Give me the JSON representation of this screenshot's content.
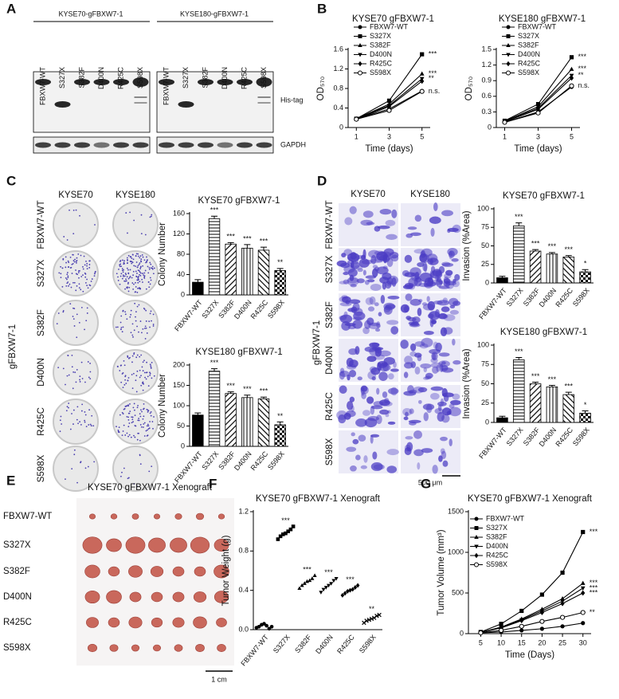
{
  "panel_labels": [
    "A",
    "B",
    "C",
    "D",
    "E",
    "F",
    "G"
  ],
  "panel_a": {
    "blots": [
      "KYSE70-gFBXW7-1",
      "KYSE180-gFBXW7-1"
    ],
    "lanes": [
      "FBXW7-WT",
      "S327X",
      "S382F",
      "D400N",
      "R425C",
      "S598X"
    ],
    "bands": [
      "His-tag",
      "GAPDH"
    ]
  },
  "panel_c": {
    "columns": [
      "KYSE70",
      "KYSE180"
    ],
    "rows": [
      "FBXW7-WT",
      "S327X",
      "S382F",
      "D400N",
      "R425C",
      "S598X"
    ],
    "group": "gFBXW7-1"
  },
  "panel_d": {
    "columns": [
      "KYSE70",
      "KYSE180"
    ],
    "rows": [
      "FBXW7-WT",
      "S327X",
      "S382F",
      "D400N",
      "R425C",
      "S598X"
    ],
    "group": "gFBXW7-1",
    "scale_bar": "500 μm"
  },
  "panel_e": {
    "title": "KYSE70 gFBXW7-1 Xenograft",
    "rows": [
      "FBXW7-WT",
      "S327X",
      "S382F",
      "D400N",
      "R425C",
      "S598X"
    ],
    "scale_bar": "1 cm"
  },
  "chart_data": [
    {
      "type": "line",
      "title": "KYSE70 gFBXW7-1",
      "x_label": "Time (days)",
      "y_label": "OD₅₇₀",
      "color": "#000000",
      "x": [
        1,
        3,
        5
      ],
      "xlim": [
        0.5,
        5.5
      ],
      "xticks": [
        1,
        3,
        5
      ],
      "ylim": [
        0,
        1.6
      ],
      "yticks": [
        0,
        0.4,
        0.8,
        1.2,
        1.6
      ],
      "series": [
        {
          "name": "FBXW7-WT",
          "marker": "circle",
          "values": [
            0.18,
            0.38,
            0.75
          ]
        },
        {
          "name": "S327X",
          "marker": "square",
          "values": [
            0.18,
            0.55,
            1.5
          ],
          "significance": "***"
        },
        {
          "name": "S382F",
          "marker": "triangle-up",
          "values": [
            0.18,
            0.48,
            1.1
          ],
          "significance": "***"
        },
        {
          "name": "D400N",
          "marker": "triangle-down",
          "values": [
            0.18,
            0.45,
            1.0
          ],
          "significance": "**"
        },
        {
          "name": "R425C",
          "marker": "diamond",
          "values": [
            0.17,
            0.43,
            0.95
          ]
        },
        {
          "name": "S598X",
          "marker": "circle-open",
          "values": [
            0.17,
            0.35,
            0.74
          ],
          "significance": "n.s."
        }
      ]
    },
    {
      "type": "line",
      "title": "KYSE180 gFBXW7-1",
      "x_label": "Time (days)",
      "y_label": "OD₅₇₀",
      "color": "#000000",
      "x": [
        1,
        3,
        5
      ],
      "xlim": [
        0.5,
        5.5
      ],
      "xticks": [
        1,
        3,
        5
      ],
      "ylim": [
        0,
        1.5
      ],
      "yticks": [
        0,
        0.3,
        0.6,
        0.9,
        1.2,
        1.5
      ],
      "series": [
        {
          "name": "FBXW7-WT",
          "marker": "circle",
          "values": [
            0.1,
            0.3,
            0.78
          ]
        },
        {
          "name": "S327X",
          "marker": "square",
          "values": [
            0.13,
            0.45,
            1.35
          ],
          "significance": "***"
        },
        {
          "name": "S382F",
          "marker": "triangle-up",
          "values": [
            0.12,
            0.4,
            1.12
          ],
          "significance": "***"
        },
        {
          "name": "D400N",
          "marker": "triangle-down",
          "values": [
            0.12,
            0.37,
            1.0
          ],
          "significance": "**"
        },
        {
          "name": "R425C",
          "marker": "diamond",
          "values": [
            0.11,
            0.35,
            0.95
          ]
        },
        {
          "name": "S598X",
          "marker": "circle-open",
          "values": [
            0.1,
            0.28,
            0.8
          ],
          "significance": "n.s."
        }
      ]
    },
    {
      "type": "bar",
      "title": "KYSE70 gFBXW7-1",
      "y_label": "Colony Number",
      "color": "#000000",
      "categories": [
        "FBXW7-WT",
        "S327X",
        "S382F",
        "D400N",
        "R425C",
        "S598X"
      ],
      "values": [
        25,
        150,
        100,
        92,
        88,
        48
      ],
      "errors": [
        5,
        5,
        3,
        7,
        6,
        4
      ],
      "significance": [
        null,
        "***",
        "***",
        "***",
        "***",
        "**"
      ],
      "patterns": [
        "solid",
        "horizontal",
        "diagonal",
        "vertical",
        "diagonal-back",
        "checker"
      ],
      "ylim": [
        0,
        160
      ],
      "yticks": [
        0,
        40,
        80,
        120,
        160
      ]
    },
    {
      "type": "bar",
      "title": "KYSE180 gFBXW7-1",
      "y_label": "Colony Number",
      "color": "#000000",
      "categories": [
        "FBXW7-WT",
        "S327X",
        "S382F",
        "D400N",
        "R425C",
        "S598X"
      ],
      "values": [
        77,
        185,
        130,
        120,
        117,
        53
      ],
      "errors": [
        5,
        6,
        4,
        6,
        4,
        7
      ],
      "significance": [
        null,
        "***",
        "***",
        "***",
        "***",
        "**"
      ],
      "patterns": [
        "solid",
        "horizontal",
        "diagonal",
        "vertical",
        "diagonal-back",
        "checker"
      ],
      "ylim": [
        0,
        200
      ],
      "yticks": [
        0,
        50,
        100,
        150,
        200
      ]
    },
    {
      "type": "bar",
      "title": "KYSE70 gFBXW7-1",
      "y_label": "Invasion (%Area)",
      "color": "#000000",
      "categories": [
        "FBXW7-WT",
        "S327X",
        "S382F",
        "D400N",
        "R425C",
        "S598X"
      ],
      "values": [
        7,
        77,
        43,
        39,
        35,
        15
      ],
      "errors": [
        2,
        4,
        2,
        2,
        2,
        3
      ],
      "significance": [
        null,
        "***",
        "***",
        "***",
        "***",
        "*"
      ],
      "patterns": [
        "solid",
        "horizontal",
        "diagonal",
        "vertical",
        "diagonal-back",
        "checker"
      ],
      "ylim": [
        0,
        100
      ],
      "yticks": [
        0,
        25,
        50,
        75,
        100
      ]
    },
    {
      "type": "bar",
      "title": "KYSE180 gFBXW7-1",
      "y_label": "Invasion (%Area)",
      "color": "#000000",
      "categories": [
        "FBXW7-WT",
        "S327X",
        "S382F",
        "D400N",
        "R425C",
        "S598X"
      ],
      "values": [
        6,
        81,
        50,
        46,
        36,
        12
      ],
      "errors": [
        2,
        3,
        2,
        2,
        3,
        3
      ],
      "significance": [
        null,
        "***",
        "***",
        "***",
        "***",
        "*"
      ],
      "patterns": [
        "solid",
        "horizontal",
        "diagonal",
        "vertical",
        "diagonal-back",
        "checker"
      ],
      "ylim": [
        0,
        100
      ],
      "yticks": [
        0,
        25,
        50,
        75,
        100
      ]
    },
    {
      "type": "strip",
      "title": "KYSE70 gFBXW7-1 Xenograft",
      "y_label": "Tumor Weight (g)",
      "color": "#000000",
      "categories": [
        "FBXW7-WT",
        "S327X",
        "S382F",
        "D400N",
        "R425C",
        "S598X"
      ],
      "markers": [
        "circle",
        "square",
        "triangle-up",
        "triangle-down",
        "diamond",
        "x"
      ],
      "values": [
        [
          0.02,
          0.03,
          0.05,
          0.06,
          0.04,
          0.01,
          0.03
        ],
        [
          0.92,
          0.95,
          0.97,
          0.98,
          1.0,
          1.02,
          1.05
        ],
        [
          0.42,
          0.45,
          0.47,
          0.49,
          0.5,
          0.52,
          0.55
        ],
        [
          0.38,
          0.41,
          0.43,
          0.45,
          0.47,
          0.5,
          0.52
        ],
        [
          0.35,
          0.37,
          0.39,
          0.4,
          0.41,
          0.43,
          0.45
        ],
        [
          0.07,
          0.09,
          0.1,
          0.11,
          0.12,
          0.14,
          0.15
        ]
      ],
      "significance": [
        null,
        "***",
        "***",
        "***",
        "***",
        "**"
      ],
      "ylim": [
        0,
        1.2
      ],
      "yticks": [
        {
          "value": 0,
          "label": "0.0"
        },
        0.4,
        0.8,
        1.2
      ]
    },
    {
      "type": "line",
      "title": "KYSE70 gFBXW7-1 Xenograft",
      "x_label": "Time (Days)",
      "y_label": "Tumor Volume (mm³)",
      "color": "#000000",
      "x": [
        5,
        10,
        15,
        20,
        25,
        30
      ],
      "xlim": [
        2,
        32
      ],
      "xticks": [
        5,
        10,
        15,
        20,
        25,
        30
      ],
      "ylim": [
        0,
        1500
      ],
      "yticks": [
        0,
        500,
        1000,
        1500
      ],
      "series": [
        {
          "name": "FBXW7-WT",
          "marker": "circle",
          "values": [
            10,
            20,
            40,
            60,
            90,
            130
          ]
        },
        {
          "name": "S327X",
          "marker": "square",
          "values": [
            20,
            120,
            280,
            480,
            750,
            1250
          ],
          "significance": "***"
        },
        {
          "name": "S382F",
          "marker": "triangle-up",
          "values": [
            15,
            80,
            180,
            300,
            430,
            620
          ],
          "significance": "***"
        },
        {
          "name": "D400N",
          "marker": "triangle-down",
          "values": [
            15,
            75,
            170,
            280,
            400,
            560
          ],
          "significance": "***"
        },
        {
          "name": "R425C",
          "marker": "diamond",
          "values": [
            15,
            70,
            160,
            260,
            370,
            500
          ],
          "significance": "***"
        },
        {
          "name": "S598X",
          "marker": "circle-open",
          "values": [
            10,
            40,
            90,
            150,
            200,
            260
          ],
          "significance": "**"
        }
      ]
    }
  ]
}
